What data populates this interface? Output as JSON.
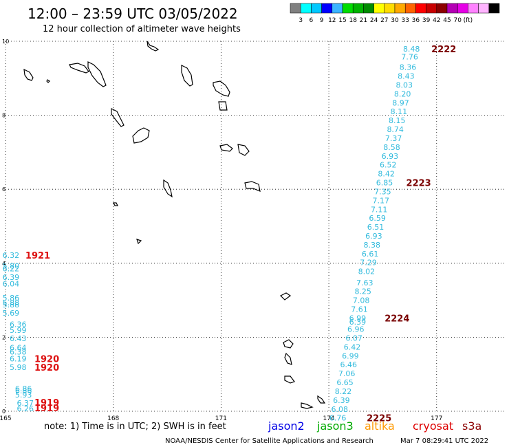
{
  "title": "12:00 – 23:59 UTC 03/05/2022",
  "subtitle": "12 hour collection of altimeter wave heights",
  "colorbar": {
    "colors": [
      "#808080",
      "#00ffff",
      "#00c8ff",
      "#0000ff",
      "#3cb4ff",
      "#00dc00",
      "#00b400",
      "#008c00",
      "#ffff00",
      "#ffdc00",
      "#ffaa00",
      "#ff6400",
      "#ff0000",
      "#c80000",
      "#8c0000",
      "#b400b4",
      "#e600e6",
      "#ff82ff",
      "#ffb4ff",
      "#000000"
    ],
    "labels": [
      "3",
      "6",
      "9",
      "12",
      "15",
      "18",
      "21",
      "24",
      "27",
      "30",
      "33",
      "36",
      "39",
      "42",
      "45",
      "70",
      "(ft)"
    ]
  },
  "note": "note: 1) Time is in UTC; 2) SWH is in feet",
  "missions": [
    {
      "name": "jason2",
      "color": "#0000e6"
    },
    {
      "name": "jason3",
      "color": "#00aa00"
    },
    {
      "name": "altika",
      "color": "#ff9900"
    },
    {
      "name": "cryosat",
      "color": "#dd0000"
    },
    {
      "name": "s3a",
      "color": "#8b0000"
    }
  ],
  "footer_left": "NOAA/NESDIS Center for Satellite Applications and Research",
  "footer_right": "Mar  7 08:29:41 UTC 2022",
  "chart_data": {
    "type": "scatter",
    "xlim": [
      165,
      178.9
    ],
    "ylim": [
      0,
      10
    ],
    "x_ticks": [
      "165",
      "168",
      "171",
      "174",
      "177"
    ],
    "y_ticks": [
      "0",
      "2",
      "4",
      "6",
      "8",
      "10"
    ],
    "grid": "dotted",
    "tracks": [
      {
        "mission": "cryosat",
        "color": "#dd1111",
        "label_color": "#dd1111",
        "swh_color": "#33bbdd",
        "points": [
          {
            "x": 165.15,
            "y": 4.22,
            "swh": "6.32"
          },
          {
            "x": 165.15,
            "y": 3.93,
            "swh": "5.80"
          },
          {
            "x": 165.15,
            "y": 3.86,
            "swh": "6.22"
          },
          {
            "x": 165.15,
            "y": 3.62,
            "swh": "6.39"
          },
          {
            "x": 165.15,
            "y": 3.45,
            "swh": "6.04"
          },
          {
            "x": 165.15,
            "y": 3.07,
            "swh": "5.86"
          },
          {
            "x": 165.15,
            "y": 2.94,
            "swh": "5.88"
          },
          {
            "x": 165.15,
            "y": 2.88,
            "swh": "5.88"
          },
          {
            "x": 165.15,
            "y": 2.66,
            "swh": "5.69"
          },
          {
            "x": 165.35,
            "y": 2.35,
            "swh": "6.36"
          },
          {
            "x": 165.35,
            "y": 2.19,
            "swh": "5.99"
          },
          {
            "x": 165.35,
            "y": 1.97,
            "swh": "6.43"
          },
          {
            "x": 165.35,
            "y": 1.72,
            "swh": "6.64"
          },
          {
            "x": 165.35,
            "y": 1.61,
            "swh": "6.38"
          },
          {
            "x": 165.35,
            "y": 1.42,
            "swh": "6.19"
          },
          {
            "x": 165.35,
            "y": 1.19,
            "swh": "5.98"
          },
          {
            "x": 165.5,
            "y": 0.61,
            "swh": "6.86"
          },
          {
            "x": 165.5,
            "y": 0.56,
            "swh": "6.86"
          },
          {
            "x": 165.5,
            "y": 0.45,
            "swh": "5.93"
          },
          {
            "x": 165.55,
            "y": 0.22,
            "swh": "6.37"
          },
          {
            "x": 165.55,
            "y": 0.07,
            "swh": "6.26"
          }
        ],
        "time_labels": [
          {
            "x": 165.9,
            "y": 4.22,
            "text": "1921"
          },
          {
            "x": 166.15,
            "y": 1.42,
            "text": "1920"
          },
          {
            "x": 166.15,
            "y": 1.19,
            "text": "1920"
          },
          {
            "x": 166.15,
            "y": 0.24,
            "text": "1919"
          },
          {
            "x": 166.15,
            "y": 0.09,
            "text": "1919"
          }
        ]
      },
      {
        "mission": "s3a",
        "color": "#8b0000",
        "label_color": "#7a0000",
        "swh_color": "#33bbdd",
        "points": [
          {
            "x": 176.3,
            "y": 9.8,
            "swh": "8.48"
          },
          {
            "x": 176.25,
            "y": 9.58,
            "swh": "7.76"
          },
          {
            "x": 176.2,
            "y": 9.3,
            "swh": "8.36"
          },
          {
            "x": 176.15,
            "y": 9.06,
            "swh": "8.43"
          },
          {
            "x": 176.1,
            "y": 8.82,
            "swh": "8.03"
          },
          {
            "x": 176.05,
            "y": 8.58,
            "swh": "8.20"
          },
          {
            "x": 176.0,
            "y": 8.34,
            "swh": "8.97"
          },
          {
            "x": 175.95,
            "y": 8.1,
            "swh": "8.11"
          },
          {
            "x": 175.9,
            "y": 7.86,
            "swh": "8.15"
          },
          {
            "x": 175.85,
            "y": 7.62,
            "swh": "8.74"
          },
          {
            "x": 175.8,
            "y": 7.38,
            "swh": "7.37"
          },
          {
            "x": 175.75,
            "y": 7.14,
            "swh": "8.58"
          },
          {
            "x": 175.7,
            "y": 6.9,
            "swh": "6.93"
          },
          {
            "x": 175.65,
            "y": 6.66,
            "swh": "6.52"
          },
          {
            "x": 175.6,
            "y": 6.42,
            "swh": "8.42"
          },
          {
            "x": 175.55,
            "y": 6.18,
            "swh": "6.85"
          },
          {
            "x": 175.5,
            "y": 5.94,
            "swh": "7.35"
          },
          {
            "x": 175.45,
            "y": 5.7,
            "swh": "7.17"
          },
          {
            "x": 175.4,
            "y": 5.46,
            "swh": "7.11"
          },
          {
            "x": 175.35,
            "y": 5.22,
            "swh": "6.59"
          },
          {
            "x": 175.3,
            "y": 4.98,
            "swh": "6.51"
          },
          {
            "x": 175.25,
            "y": 4.74,
            "swh": "6.93"
          },
          {
            "x": 175.2,
            "y": 4.5,
            "swh": "8.38"
          },
          {
            "x": 175.15,
            "y": 4.26,
            "swh": "6.61"
          },
          {
            "x": 175.1,
            "y": 4.02,
            "swh": "7.29"
          },
          {
            "x": 175.05,
            "y": 3.78,
            "swh": "8.02"
          },
          {
            "x": 175.0,
            "y": 3.48,
            "swh": "7.63"
          },
          {
            "x": 174.95,
            "y": 3.24,
            "swh": "8.25"
          },
          {
            "x": 174.9,
            "y": 3.0,
            "swh": "7.08"
          },
          {
            "x": 174.85,
            "y": 2.76,
            "swh": "7.61"
          },
          {
            "x": 174.8,
            "y": 2.52,
            "swh": "6.99"
          },
          {
            "x": 174.8,
            "y": 2.42,
            "swh": "6.39"
          },
          {
            "x": 174.75,
            "y": 2.22,
            "swh": "6.96"
          },
          {
            "x": 174.7,
            "y": 1.98,
            "swh": "6.07"
          },
          {
            "x": 174.65,
            "y": 1.74,
            "swh": "6.42"
          },
          {
            "x": 174.6,
            "y": 1.5,
            "swh": "6.99"
          },
          {
            "x": 174.55,
            "y": 1.26,
            "swh": "6.46"
          },
          {
            "x": 174.5,
            "y": 1.02,
            "swh": "7.06"
          },
          {
            "x": 174.45,
            "y": 0.78,
            "swh": "6.65"
          },
          {
            "x": 174.4,
            "y": 0.54,
            "swh": "8.22"
          },
          {
            "x": 174.35,
            "y": 0.3,
            "swh": "6.39"
          },
          {
            "x": 174.3,
            "y": 0.06,
            "swh": "6.08"
          },
          {
            "x": 174.25,
            "y": -0.18,
            "swh": "6.76"
          }
        ],
        "time_labels": [
          {
            "x": 177.2,
            "y": 9.8,
            "text": "2222"
          },
          {
            "x": 176.5,
            "y": 6.18,
            "text": "2223"
          },
          {
            "x": 175.9,
            "y": 2.52,
            "text": "2224"
          },
          {
            "x": 175.4,
            "y": -0.18,
            "text": "2225"
          }
        ]
      }
    ]
  }
}
